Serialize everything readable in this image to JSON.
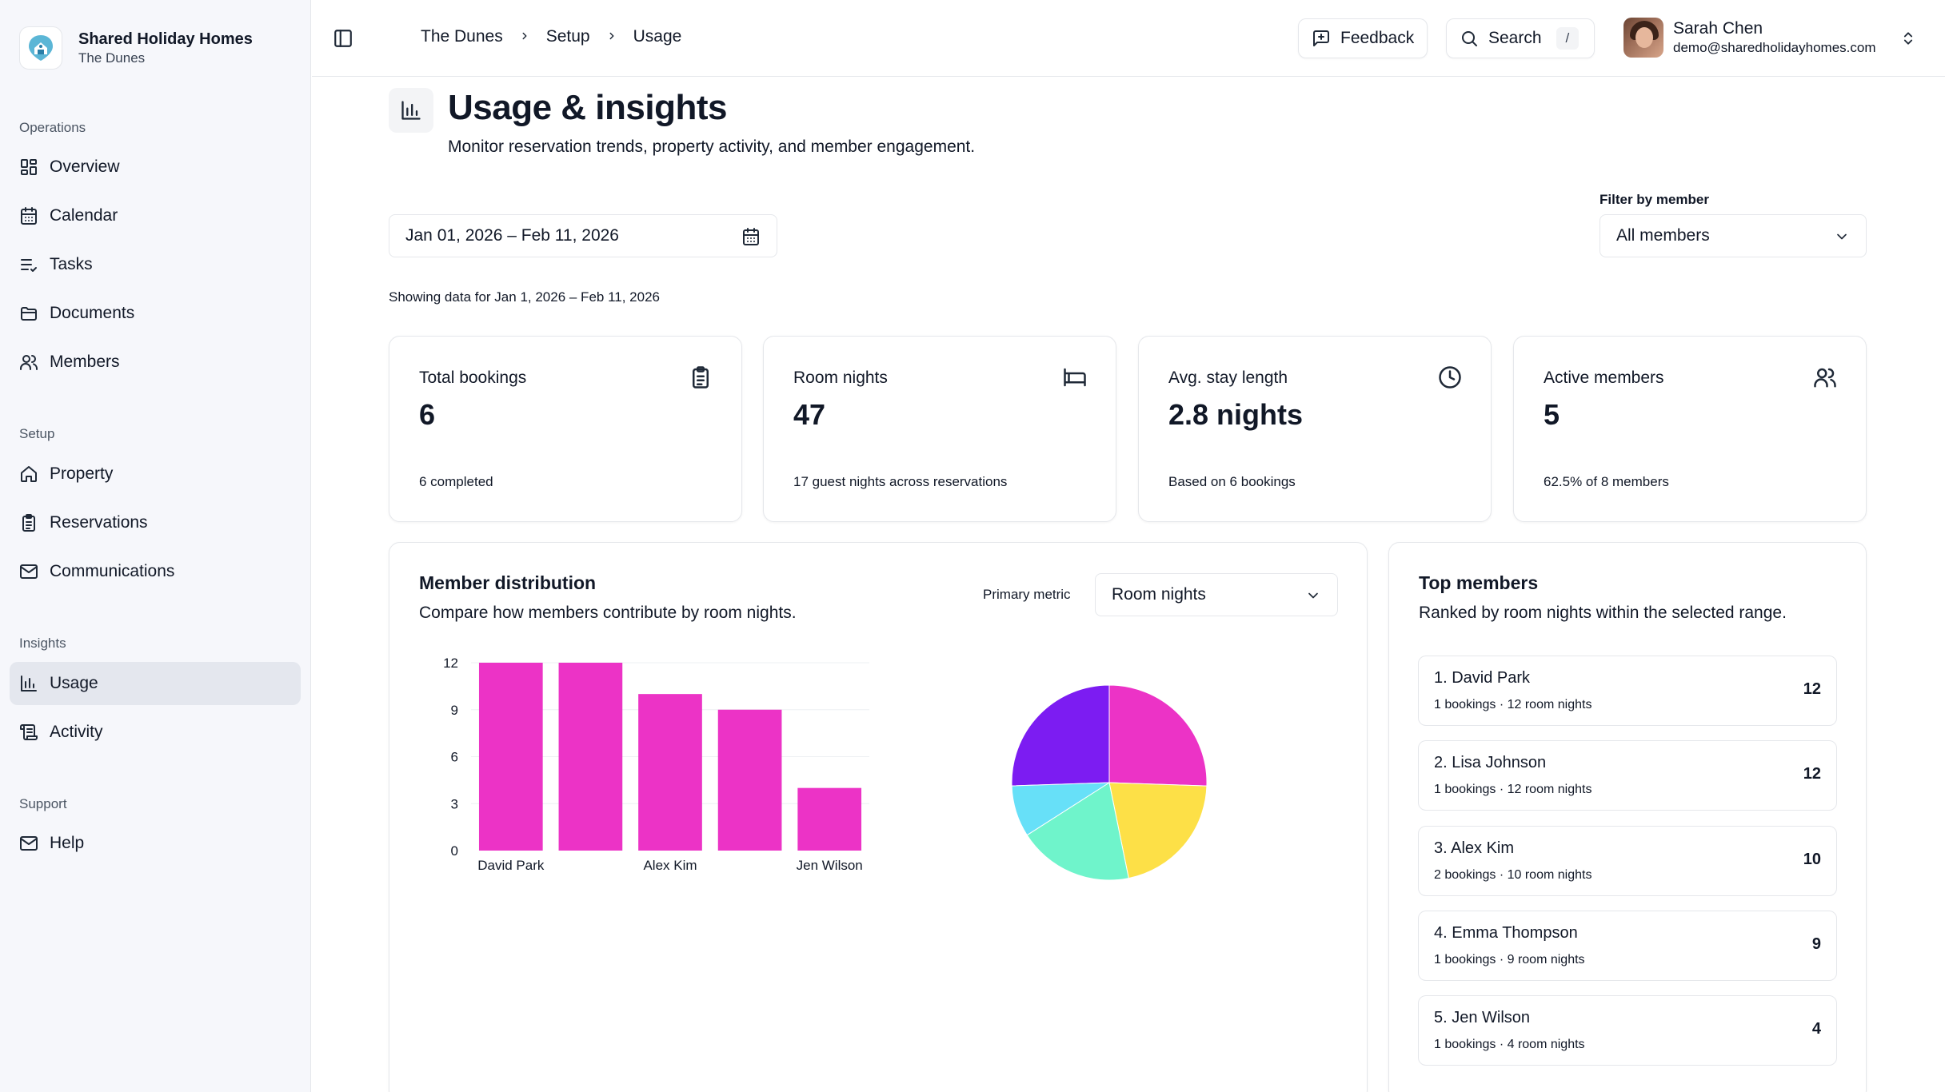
{
  "sidebar": {
    "brand_name": "Shared Holiday Homes",
    "brand_sub": "The Dunes",
    "sections": {
      "operations": "Operations",
      "setup": "Setup",
      "insights": "Insights",
      "support": "Support"
    },
    "items": {
      "overview": "Overview",
      "calendar": "Calendar",
      "tasks": "Tasks",
      "documents": "Documents",
      "members": "Members",
      "property": "Property",
      "reservations": "Reservations",
      "communications": "Communications",
      "usage": "Usage",
      "activity": "Activity",
      "help": "Help"
    },
    "active_item": "usage"
  },
  "topbar": {
    "breadcrumb": [
      "The Dunes",
      "Setup",
      "Usage"
    ],
    "feedback_label": "Feedback",
    "search_label": "Search",
    "search_shortcut": "/",
    "user_name": "Sarah Chen",
    "user_email": "demo@sharedholidayhomes.com"
  },
  "page": {
    "title": "Usage & insights",
    "subtitle": "Monitor reservation trends, property activity, and member engagement.",
    "date_range": "Jan 01, 2026 – Feb 11, 2026",
    "filter_label": "Filter by member",
    "filter_value": "All members",
    "showing_text": "Showing data for Jan 1, 2026 – Feb 11, 2026"
  },
  "stats": [
    {
      "label": "Total bookings",
      "value": "6",
      "note": "6 completed",
      "icon": "clipboard-icon"
    },
    {
      "label": "Room nights",
      "value": "47",
      "note": "17 guest nights across reservations",
      "icon": "bed-icon"
    },
    {
      "label": "Avg. stay length",
      "value": "2.8 nights",
      "note": "Based on 6 bookings",
      "icon": "clock-icon"
    },
    {
      "label": "Active members",
      "value": "5",
      "note": "62.5% of 8 members",
      "icon": "users-icon"
    }
  ],
  "distribution": {
    "title": "Member distribution",
    "subtitle": "Compare how members contribute by room nights.",
    "metric_label": "Primary metric",
    "metric_value": "Room nights"
  },
  "chart_data": [
    {
      "type": "bar",
      "categories": [
        "David Park",
        "Lisa Johnson",
        "Alex Kim",
        "Emma Thompson",
        "Jen Wilson"
      ],
      "tick_labels_shown": [
        "David Park",
        "",
        "Alex Kim",
        "",
        "Jen Wilson"
      ],
      "values": [
        12,
        12,
        10,
        9,
        4
      ],
      "yticks": [
        0,
        3,
        6,
        9,
        12
      ],
      "ylim": [
        0,
        12
      ],
      "color": "#ec33c6",
      "grid": true
    },
    {
      "type": "pie",
      "categories": [
        "David Park",
        "Lisa Johnson",
        "Alex Kim",
        "Emma Thompson",
        "Jen Wilson"
      ],
      "values": [
        12,
        12,
        10,
        9,
        4
      ],
      "colors": [
        "#7c1cf2",
        "#ec33c6",
        "#fde047",
        "#6ff4cb",
        "#67e0f8"
      ]
    }
  ],
  "top_members": {
    "title": "Top members",
    "subtitle": "Ranked by room nights within the selected range.",
    "items": [
      {
        "name": "1. David Park",
        "meta": "1 bookings · 12 room nights",
        "value": "12"
      },
      {
        "name": "2. Lisa Johnson",
        "meta": "1 bookings · 12 room nights",
        "value": "12"
      },
      {
        "name": "3. Alex Kim",
        "meta": "2 bookings · 10 room nights",
        "value": "10"
      },
      {
        "name": "4. Emma Thompson",
        "meta": "1 bookings · 9 room nights",
        "value": "9"
      },
      {
        "name": "5. Jen Wilson",
        "meta": "1 bookings · 4 room nights",
        "value": "4"
      }
    ]
  }
}
